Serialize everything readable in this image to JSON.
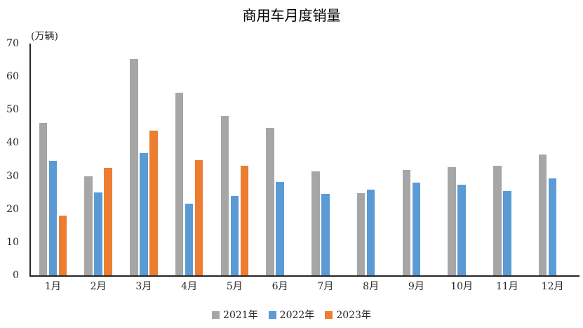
{
  "chart_data": {
    "type": "bar",
    "title": "商用车月度销量",
    "unit_label": "(万辆)",
    "categories": [
      "1月",
      "2月",
      "3月",
      "4月",
      "5月",
      "6月",
      "7月",
      "8月",
      "9月",
      "10月",
      "11月",
      "12月"
    ],
    "series": [
      {
        "name": "2021年",
        "color": "#A6A6A6",
        "values": [
          46.0,
          30.0,
          65.3,
          55.1,
          48.2,
          44.6,
          31.3,
          24.9,
          31.8,
          32.6,
          33.0,
          36.4
        ]
      },
      {
        "name": "2022年",
        "color": "#5B9BD5",
        "values": [
          34.5,
          25.0,
          37.0,
          21.7,
          23.9,
          28.2,
          24.6,
          25.9,
          28.0,
          27.3,
          25.4,
          29.2
        ]
      },
      {
        "name": "2023年",
        "color": "#ED7D31",
        "values": [
          18.0,
          32.4,
          43.7,
          34.8,
          33.0,
          null,
          null,
          null,
          null,
          null,
          null,
          null
        ]
      }
    ],
    "y_axis": {
      "min": 0,
      "max": 70,
      "tick_interval": 10,
      "ticks": [
        0,
        10,
        20,
        30,
        40,
        50,
        60,
        70
      ]
    },
    "xlabel": "",
    "ylabel": "(万辆)",
    "legend_position": "bottom",
    "gridlines": false,
    "axis_color": "#262626",
    "background_color": "#FFFFFF"
  }
}
